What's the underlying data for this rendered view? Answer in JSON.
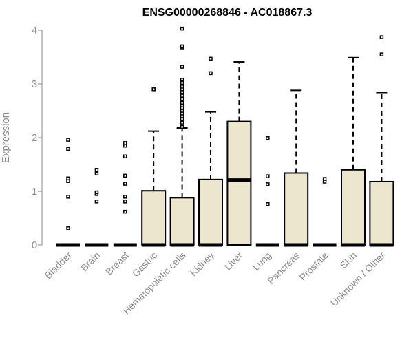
{
  "chart_data": {
    "type": "box",
    "title": "ENSG00000268846 - AC018867.3",
    "ylabel": "Expression",
    "xlabel": "",
    "ylim": [
      0,
      4.1
    ],
    "yticks": [
      "0",
      "1",
      "2",
      "3",
      "4"
    ],
    "categories": [
      "Bladder",
      "Brain",
      "Breast",
      "Gastric",
      "Hematopoietic cells",
      "Kidney",
      "Liver",
      "Lung",
      "Pancreas",
      "Prostate",
      "Skin",
      "Unknown / Other"
    ],
    "box_fill": "#ede6cf",
    "box_stroke": "#000000",
    "boxes": [
      {
        "min": 0,
        "q1": 0,
        "median": 0,
        "q3": 0,
        "max": 0,
        "outliers": [
          0.31,
          0.9,
          1.19,
          1.24,
          1.79,
          1.96
        ]
      },
      {
        "min": 0,
        "q1": 0,
        "median": 0,
        "q3": 0,
        "max": 0,
        "outliers": [
          0.81,
          0.95,
          0.98,
          1.33,
          1.4
        ]
      },
      {
        "min": 0,
        "q1": 0,
        "median": 0,
        "q3": 0,
        "max": 0,
        "outliers": [
          0.62,
          0.81,
          0.9,
          1.14,
          1.29,
          1.65,
          1.85,
          1.9
        ]
      },
      {
        "min": 0,
        "q1": 0,
        "median": 0,
        "q3": 1.01,
        "max": 2.12,
        "outliers": [
          2.9
        ]
      },
      {
        "min": 0,
        "q1": 0,
        "median": 0,
        "q3": 0.88,
        "max": 2.18,
        "outliers": [
          2.2,
          2.28,
          2.35,
          2.4,
          2.45,
          2.5,
          2.55,
          2.6,
          2.65,
          2.72,
          2.78,
          2.85,
          2.9,
          2.95,
          3.02,
          3.08,
          3.32,
          3.68,
          3.7,
          4.03
        ]
      },
      {
        "min": 0,
        "q1": 0,
        "median": 0,
        "q3": 1.22,
        "max": 2.48,
        "outliers": [
          3.2,
          3.47
        ]
      },
      {
        "min": 0,
        "q1": 0,
        "median": 1.21,
        "q3": 2.3,
        "max": 3.41,
        "outliers": []
      },
      {
        "min": 0,
        "q1": 0,
        "median": 0,
        "q3": 0,
        "max": 0,
        "outliers": [
          0.76,
          1.13,
          1.28,
          1.99
        ]
      },
      {
        "min": 0,
        "q1": 0,
        "median": 0,
        "q3": 1.34,
        "max": 2.88,
        "outliers": []
      },
      {
        "min": 0,
        "q1": 0,
        "median": 0,
        "q3": 0,
        "max": 0,
        "outliers": [
          1.18,
          1.23
        ]
      },
      {
        "min": 0,
        "q1": 0,
        "median": 0,
        "q3": 1.4,
        "max": 3.49,
        "outliers": []
      },
      {
        "min": 0,
        "q1": 0,
        "median": 0,
        "q3": 1.18,
        "max": 2.84,
        "outliers": [
          3.55,
          3.87
        ]
      }
    ]
  }
}
